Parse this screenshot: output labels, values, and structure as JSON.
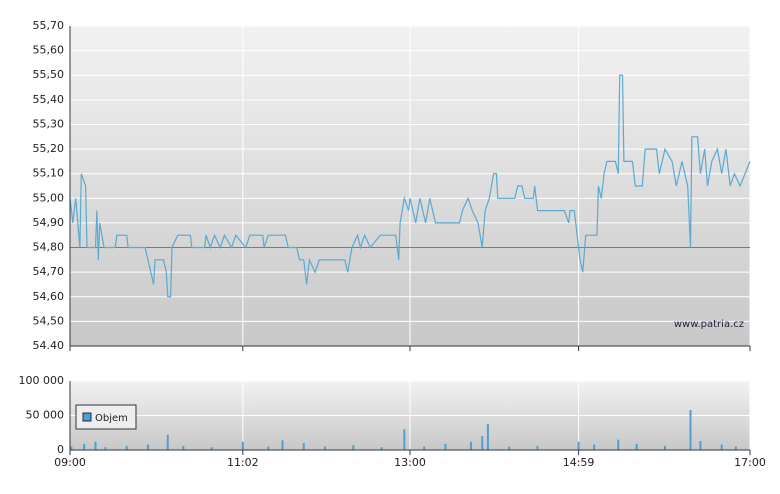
{
  "chart_data": [
    {
      "type": "line",
      "xlim": [
        "09:00",
        "17:00"
      ],
      "ylim": [
        54.4,
        55.7
      ],
      "yticks": [
        {
          "value": 55.7,
          "label": "55,70"
        },
        {
          "value": 55.6,
          "label": "55,60"
        },
        {
          "value": 55.5,
          "label": "55,50"
        },
        {
          "value": 55.4,
          "label": "55,40"
        },
        {
          "value": 55.3,
          "label": "55,30"
        },
        {
          "value": 55.2,
          "label": "55,20"
        },
        {
          "value": 55.1,
          "label": "55,10"
        },
        {
          "value": 55.0,
          "label": "55,00"
        },
        {
          "value": 54.9,
          "label": "54,90"
        },
        {
          "value": 54.8,
          "label": "54,80"
        },
        {
          "value": 54.7,
          "label": "54,70"
        },
        {
          "value": 54.6,
          "label": "54,60"
        },
        {
          "value": 54.5,
          "label": "54,50"
        },
        {
          "value": 54.4,
          "label": "54.40"
        }
      ],
      "reference_line": {
        "value": 54.8,
        "color": "#e05050"
      },
      "annotation": "www.patria.cz",
      "grid": true,
      "series": [
        {
          "color": "#5aaad2",
          "x": [
            "09:00",
            "09:02",
            "09:04",
            "09:07",
            "09:08",
            "09:11",
            "09:12",
            "09:18",
            "09:19",
            "09:20",
            "09:21",
            "09:24",
            "09:32",
            "09:33",
            "09:40",
            "09:41",
            "09:53",
            "09:55",
            "09:57",
            "09:59",
            "10:00",
            "10:06",
            "10:08",
            "10:09",
            "10:11",
            "10:12",
            "10:16",
            "10:25",
            "10:26",
            "10:35",
            "10:36",
            "10:39",
            "10:42",
            "10:46",
            "10:49",
            "10:54",
            "10:57",
            "11:04",
            "11:07",
            "11:16",
            "11:17",
            "11:20",
            "11:32",
            "11:34",
            "11:40",
            "11:42",
            "11:45",
            "11:47",
            "11:49",
            "11:53",
            "11:56",
            "12:14",
            "12:16",
            "12:19",
            "12:23",
            "12:25",
            "12:28",
            "12:32",
            "12:39",
            "12:50",
            "12:52",
            "12:53",
            "12:56",
            "12:59",
            "13:00",
            "13:04",
            "13:07",
            "13:11",
            "13:14",
            "13:18",
            "13:35",
            "13:37",
            "13:41",
            "13:44",
            "13:48",
            "13:51",
            "13:53",
            "13:56",
            "13:59",
            "14:01",
            "14:02",
            "14:14",
            "14:16",
            "14:19",
            "14:21",
            "14:27",
            "14:28",
            "14:30",
            "14:49",
            "14:52",
            "14:53",
            "14:56",
            "14:59",
            "15:00",
            "15:02",
            "15:04",
            "15:12",
            "15:13",
            "15:15",
            "15:17",
            "15:19",
            "15:25",
            "15:27",
            "15:28",
            "15:30",
            "15:31",
            "15:37",
            "15:39",
            "15:44",
            "15:46",
            "15:54",
            "15:56",
            "16:00",
            "16:05",
            "16:08",
            "16:12",
            "16:16",
            "16:18",
            "16:19",
            "16:23",
            "16:25",
            "16:28",
            "16:30",
            "16:33",
            "16:37",
            "16:40",
            "16:43",
            "16:46",
            "16:49",
            "16:53",
            "17:00"
          ],
          "values": [
            55.0,
            54.9,
            55.0,
            54.8,
            55.1,
            55.05,
            54.8,
            54.8,
            54.95,
            54.75,
            54.9,
            54.8,
            54.8,
            54.85,
            54.85,
            54.8,
            54.8,
            54.75,
            54.7,
            54.65,
            54.75,
            54.75,
            54.7,
            54.6,
            54.6,
            54.8,
            54.85,
            54.85,
            54.8,
            54.8,
            54.85,
            54.8,
            54.85,
            54.8,
            54.85,
            54.8,
            54.85,
            54.8,
            54.85,
            54.85,
            54.8,
            54.85,
            54.85,
            54.8,
            54.8,
            54.75,
            54.75,
            54.65,
            54.75,
            54.7,
            54.75,
            54.75,
            54.7,
            54.8,
            54.85,
            54.8,
            54.85,
            54.8,
            54.85,
            54.85,
            54.75,
            54.9,
            55.0,
            54.95,
            55.0,
            54.9,
            55.0,
            54.9,
            55.0,
            54.9,
            54.9,
            54.95,
            55.0,
            54.95,
            54.9,
            54.8,
            54.95,
            55.0,
            55.1,
            55.1,
            55.0,
            55.0,
            55.05,
            55.05,
            55.0,
            55.0,
            55.05,
            54.95,
            54.95,
            54.9,
            54.95,
            54.95,
            54.8,
            54.75,
            54.7,
            54.85,
            54.85,
            55.05,
            55.0,
            55.1,
            55.15,
            55.15,
            55.1,
            55.5,
            55.5,
            55.15,
            55.15,
            55.05,
            55.05,
            55.2,
            55.2,
            55.1,
            55.2,
            55.15,
            55.05,
            55.15,
            55.05,
            54.8,
            55.25,
            55.25,
            55.1,
            55.2,
            55.05,
            55.15,
            55.2,
            55.1,
            55.2,
            55.05,
            55.1,
            55.05,
            55.15
          ]
        }
      ]
    },
    {
      "type": "bar",
      "xlim": [
        "09:00",
        "17:00"
      ],
      "xticks": [
        "09:00",
        "11:02",
        "13:00",
        "14:59",
        "17:00"
      ],
      "ylim": [
        0,
        100000
      ],
      "yticks": [
        0,
        {
          "value": 50000,
          "label": "50 000"
        },
        {
          "value": 100000,
          "label": "100 000"
        }
      ],
      "grid": true,
      "legend": "top-left",
      "series": [
        {
          "name": "Objem",
          "color": "#4f9fd0",
          "x": [
            "09:01",
            "09:10",
            "09:18",
            "09:25",
            "09:40",
            "09:55",
            "10:09",
            "10:20",
            "10:40",
            "11:02",
            "11:20",
            "11:30",
            "11:45",
            "12:00",
            "12:20",
            "12:40",
            "12:56",
            "13:10",
            "13:25",
            "13:43",
            "13:51",
            "13:55",
            "14:10",
            "14:30",
            "14:59",
            "15:10",
            "15:27",
            "15:40",
            "16:00",
            "16:18",
            "16:25",
            "16:40",
            "16:50"
          ],
          "values": [
            5000,
            9000,
            12000,
            4000,
            6000,
            8000,
            22000,
            6000,
            4000,
            12000,
            5000,
            14000,
            10000,
            5000,
            7000,
            4000,
            30000,
            5000,
            9000,
            12000,
            20000,
            38000,
            5000,
            6000,
            12000,
            8000,
            15000,
            9000,
            6000,
            58000,
            13000,
            8000,
            5000
          ]
        }
      ]
    }
  ]
}
